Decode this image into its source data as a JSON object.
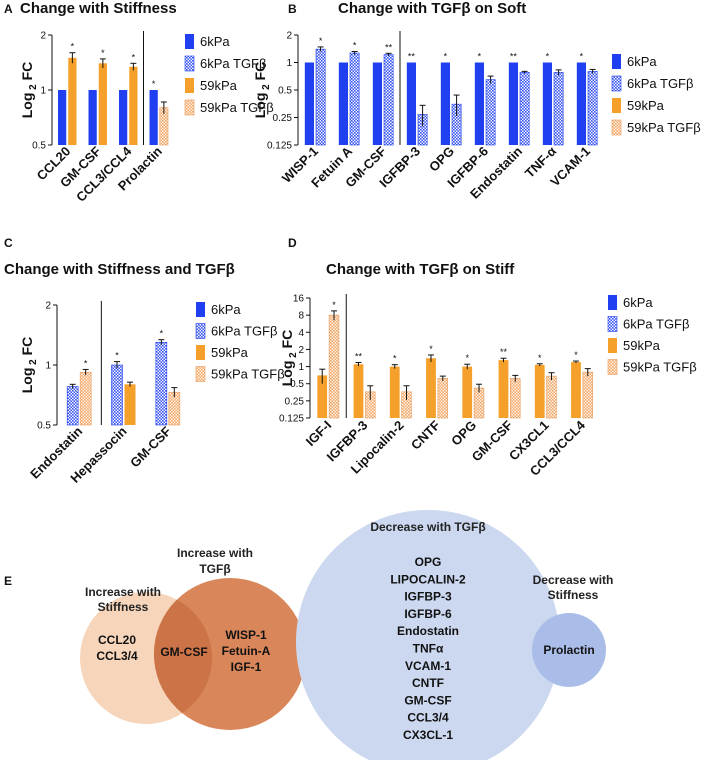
{
  "legend_labels": [
    "6kPa",
    "6kPa TGFβ",
    "59kPa",
    "59kPa TGFβ"
  ],
  "colors": {
    "blue": "#1f3ff0",
    "hatch_blue": "#7f8ff5",
    "orange": "#f5a02a",
    "hatch_orange": "#f9c99a",
    "venn_light_orange": "#f6d5bb",
    "venn_orange": "#d9875a",
    "venn_overlap": "#cc7447",
    "venn_blue": "#ccd8f0",
    "venn_blue_small": "#aabde8"
  },
  "chart_data": [
    {
      "id": "A",
      "panel_letter": "A",
      "type": "bar",
      "title": "Change with Stiffness",
      "ylabel": "Log",
      "ylabel_sub": "2",
      "ylabel_suffix": " FC",
      "yscale": "log2",
      "ylim": [
        0.5,
        2
      ],
      "yticks": [
        0.5,
        1,
        2
      ],
      "ytick_labels": [
        "0.5",
        "1",
        "2"
      ],
      "categories": [
        "CCL20",
        "GM-CSF",
        "CCL3/CCL4",
        "Prolactin"
      ],
      "series_names": [
        "6kPa",
        "6kPa TGFβ",
        "59kPa",
        "59kPa TGFβ"
      ],
      "divider_after": [
        3
      ],
      "groups": [
        [
          {
            "s": 0,
            "v": 1.0
          },
          {
            "s": 2,
            "v": 1.5,
            "e": 0.1,
            "sig": "*"
          }
        ],
        [
          {
            "s": 0,
            "v": 1.0
          },
          {
            "s": 2,
            "v": 1.4,
            "e": 0.08,
            "sig": "*"
          }
        ],
        [
          {
            "s": 0,
            "v": 1.0
          },
          {
            "s": 2,
            "v": 1.34,
            "e": 0.06,
            "sig": "*"
          }
        ],
        [
          {
            "s": 0,
            "v": 1.0,
            "sig": "*"
          },
          {
            "s": 3,
            "v": 0.8,
            "e": 0.06
          }
        ]
      ]
    },
    {
      "id": "B",
      "panel_letter": "B",
      "type": "bar",
      "title": "Change with TGFβ on Soft",
      "ylabel": "Log",
      "ylabel_sub": "2",
      "ylabel_suffix": " FC",
      "yscale": "log2",
      "ylim": [
        0.125,
        2
      ],
      "yticks": [
        0.125,
        0.25,
        0.5,
        1,
        2
      ],
      "ytick_labels": [
        "0.125",
        "0.25",
        "0.5",
        "1",
        "2"
      ],
      "categories": [
        "WISP-1",
        "Fetuin A",
        "GM-CSF",
        "IGFBP-3",
        "OPG",
        "IGFBP-6",
        "Endostatin",
        "TNF-α",
        "VCAM-1"
      ],
      "series_names": [
        "6kPa",
        "6kPa TGFβ",
        "59kPa",
        "59kPa TGFβ"
      ],
      "divider_after": [
        3
      ],
      "groups": [
        [
          {
            "s": 0,
            "v": 1.0
          },
          {
            "s": 1,
            "v": 1.4,
            "e": 0.08,
            "sig": "*"
          }
        ],
        [
          {
            "s": 0,
            "v": 1.0
          },
          {
            "s": 1,
            "v": 1.27,
            "e": 0.05,
            "sig": "*"
          }
        ],
        [
          {
            "s": 0,
            "v": 1.0
          },
          {
            "s": 1,
            "v": 1.22,
            "e": 0.04,
            "sig": "**"
          }
        ],
        [
          {
            "s": 0,
            "v": 1.0,
            "sig": "**"
          },
          {
            "s": 1,
            "v": 0.27,
            "e": 0.07
          }
        ],
        [
          {
            "s": 0,
            "v": 1.0,
            "sig": "*"
          },
          {
            "s": 1,
            "v": 0.35,
            "e": 0.09
          }
        ],
        [
          {
            "s": 0,
            "v": 1.0,
            "sig": "*"
          },
          {
            "s": 1,
            "v": 0.65,
            "e": 0.06
          }
        ],
        [
          {
            "s": 0,
            "v": 1.0,
            "sig": "**"
          },
          {
            "s": 1,
            "v": 0.78,
            "e": 0.02
          }
        ],
        [
          {
            "s": 0,
            "v": 1.0,
            "sig": "*"
          },
          {
            "s": 1,
            "v": 0.78,
            "e": 0.05
          }
        ],
        [
          {
            "s": 0,
            "v": 1.0,
            "sig": "*"
          },
          {
            "s": 1,
            "v": 0.8,
            "e": 0.04
          }
        ]
      ]
    },
    {
      "id": "C",
      "panel_letter": "C",
      "type": "bar",
      "title": "Change with Stiffness and TGFβ",
      "ylabel": "Log",
      "ylabel_sub": "2",
      "ylabel_suffix": " FC",
      "yscale": "log2",
      "ylim": [
        0.5,
        2
      ],
      "yticks": [
        0.5,
        1,
        2
      ],
      "ytick_labels": [
        "0.5",
        "1",
        "2"
      ],
      "categories": [
        "Endostatin",
        "Hepassocin",
        "GM-CSF"
      ],
      "series_names": [
        "6kPa",
        "6kPa TGFβ",
        "59kPa",
        "59kPa TGFβ"
      ],
      "divider_after": [
        1
      ],
      "groups": [
        [
          {
            "s": 1,
            "v": 0.78,
            "e": 0.02
          },
          {
            "s": 3,
            "v": 0.92,
            "e": 0.03,
            "sig": "*"
          }
        ],
        [
          {
            "s": 1,
            "v": 1.0,
            "e": 0.04,
            "sig": "*"
          },
          {
            "s": 2,
            "v": 0.8,
            "e": 0.02
          }
        ],
        [
          {
            "s": 1,
            "v": 1.3,
            "e": 0.04,
            "sig": "*"
          },
          {
            "s": 3,
            "v": 0.73,
            "e": 0.04
          }
        ]
      ]
    },
    {
      "id": "D",
      "panel_letter": "D",
      "type": "bar",
      "title": "Change with TGFβ on Stiff",
      "ylabel": "Log",
      "ylabel_sub": "2",
      "ylabel_suffix": " FC",
      "yscale": "log2",
      "ylim": [
        0.125,
        16
      ],
      "yticks": [
        0.125,
        0.25,
        0.5,
        1,
        2,
        4,
        8,
        16
      ],
      "ytick_labels": [
        "0.125",
        "0.25",
        "0.5",
        "1",
        "2",
        "4",
        "8",
        "16"
      ],
      "categories": [
        "IGF-I",
        "IGFBP-3",
        "Lipocalin-2",
        "CNTF",
        "OPG",
        "GM-CSF",
        "CX3CL1",
        "CCL3/CCL4"
      ],
      "series_names": [
        "6kPa",
        "6kPa TGFβ",
        "59kPa",
        "59kPa TGFβ"
      ],
      "divider_after": [
        1
      ],
      "groups": [
        [
          {
            "s": 2,
            "v": 0.7,
            "e": 0.2
          },
          {
            "s": 3,
            "v": 8.0,
            "e": 1.5,
            "sig": "*"
          }
        ],
        [
          {
            "s": 2,
            "v": 1.1,
            "e": 0.08,
            "sig": "**"
          },
          {
            "s": 3,
            "v": 0.36,
            "e": 0.1
          }
        ],
        [
          {
            "s": 2,
            "v": 1.0,
            "e": 0.08,
            "sig": "*"
          },
          {
            "s": 3,
            "v": 0.36,
            "e": 0.1
          }
        ],
        [
          {
            "s": 2,
            "v": 1.4,
            "e": 0.2,
            "sig": "*"
          },
          {
            "s": 3,
            "v": 0.62,
            "e": 0.06
          }
        ],
        [
          {
            "s": 2,
            "v": 1.0,
            "e": 0.1,
            "sig": "*"
          },
          {
            "s": 3,
            "v": 0.42,
            "e": 0.07
          }
        ],
        [
          {
            "s": 2,
            "v": 1.3,
            "e": 0.1,
            "sig": "**"
          },
          {
            "s": 3,
            "v": 0.62,
            "e": 0.08
          }
        ],
        [
          {
            "s": 2,
            "v": 1.07,
            "e": 0.05,
            "sig": "*"
          },
          {
            "s": 3,
            "v": 0.68,
            "e": 0.1
          }
        ],
        [
          {
            "s": 2,
            "v": 1.2,
            "e": 0.05,
            "sig": "*"
          },
          {
            "s": 3,
            "v": 0.8,
            "e": 0.12
          }
        ]
      ]
    }
  ],
  "venn": {
    "panel_letter": "E",
    "left_title": [
      "Increase with",
      "Stiffness"
    ],
    "left_items": [
      "CCL20",
      "CCL3/4"
    ],
    "right_title": [
      "Increase with",
      "TGFβ"
    ],
    "right_items": [
      "WISP-1",
      "Fetuin-A",
      "IGF-1"
    ],
    "overlap_items": [
      "GM-CSF"
    ],
    "decrease_tgf_title": "Decrease with TGFβ",
    "decrease_tgf_items": [
      "OPG",
      "LIPOCALIN-2",
      "IGFBP-3",
      "IGFBP-6",
      "Endostatin",
      "TNFα",
      "VCAM-1",
      "CNTF",
      "GM-CSF",
      "CCL3/4",
      "CX3CL-1"
    ],
    "decrease_stiff_title": [
      "Decrease with",
      "Stiffness"
    ],
    "decrease_stiff_items": [
      "Prolactin"
    ]
  }
}
